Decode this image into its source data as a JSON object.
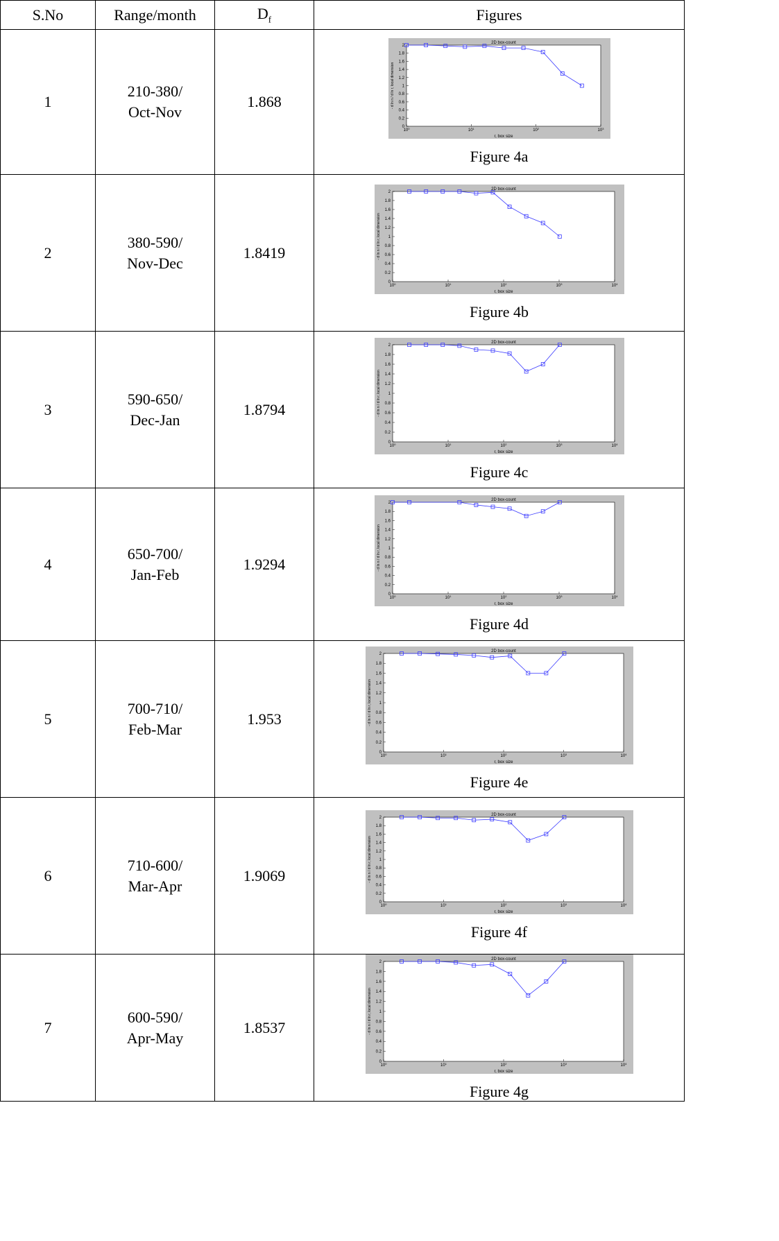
{
  "header": {
    "sno": "S.No",
    "range": "Range/month",
    "df_main": "D",
    "df_sub": "f",
    "figures": "Figures"
  },
  "rows": [
    {
      "sno": "1",
      "range_line1": "210-380/",
      "range_line2": "Oct-Nov",
      "df": "1.868",
      "caption": "Figure 4a"
    },
    {
      "sno": "2",
      "range_line1": "380-590/",
      "range_line2": "Nov-Dec",
      "df": "1.8419",
      "caption": "Figure 4b"
    },
    {
      "sno": "3",
      "range_line1": "590-650/",
      "range_line2": "Dec-Jan",
      "df": "1.8794",
      "caption": "Figure 4c"
    },
    {
      "sno": "4",
      "range_line1": "650-700/",
      "range_line2": "Jan-Feb",
      "df": "1.9294",
      "caption": "Figure 4d"
    },
    {
      "sno": "5",
      "range_line1": "700-710/",
      "range_line2": "Feb-Mar",
      "df": "1.953",
      "caption": "Figure 4e"
    },
    {
      "sno": "6",
      "range_line1": "710-600/",
      "range_line2": "Mar-Apr",
      "df": "1.9069",
      "caption": "Figure 4f"
    },
    {
      "sno": "7",
      "range_line1": "600-590/",
      "range_line2": "Apr-May",
      "df": "1.8537",
      "caption": "Figure 4g"
    }
  ],
  "chart_data": [
    {
      "type": "line",
      "title": "2D box-count",
      "xlabel": "r, box size",
      "ylabel": "- d ln n / d ln r, local dimension",
      "xscale": "log",
      "xlim": [
        1,
        1000
      ],
      "ylim": [
        0,
        2
      ],
      "yticks": [
        0,
        0.2,
        0.4,
        0.6,
        0.8,
        1,
        1.2,
        1.4,
        1.6,
        1.8,
        2
      ],
      "xtick_labels": [
        "10^0",
        "10^1",
        "10^2",
        "10^3"
      ],
      "x": [
        1,
        2,
        4,
        8,
        16,
        32,
        64,
        128,
        256,
        512
      ],
      "values": [
        2,
        2,
        1.98,
        1.96,
        1.98,
        1.93,
        1.93,
        1.83,
        1.3,
        1.0
      ]
    },
    {
      "type": "line",
      "title": "2D box-count",
      "xlabel": "r, box size",
      "ylabel": "- d ln n / d ln r, local dimension",
      "xscale": "log",
      "xlim": [
        1,
        10000
      ],
      "ylim": [
        0,
        2
      ],
      "yticks": [
        0,
        0.2,
        0.4,
        0.6,
        0.8,
        1,
        1.2,
        1.4,
        1.6,
        1.8,
        2
      ],
      "xtick_labels": [
        "10^0",
        "10^1",
        "10^2",
        "10^3",
        "10^4"
      ],
      "x": [
        2,
        4,
        8,
        16,
        32,
        64,
        128,
        256,
        512,
        1024
      ],
      "values": [
        2,
        2,
        2,
        2,
        1.96,
        1.98,
        1.66,
        1.45,
        1.3,
        1.0
      ]
    },
    {
      "type": "line",
      "title": "2D box-count",
      "xlabel": "r, box size",
      "ylabel": "- d ln n / d ln r, local dimension",
      "xscale": "log",
      "xlim": [
        1,
        10000
      ],
      "ylim": [
        0,
        2
      ],
      "yticks": [
        0,
        0.2,
        0.4,
        0.6,
        0.8,
        1,
        1.2,
        1.4,
        1.6,
        1.8,
        2
      ],
      "xtick_labels": [
        "10^0",
        "10^1",
        "10^2",
        "10^3",
        "10^4"
      ],
      "x": [
        2,
        4,
        8,
        16,
        32,
        64,
        128,
        256,
        512,
        1024
      ],
      "values": [
        2,
        2,
        2,
        1.98,
        1.9,
        1.88,
        1.82,
        1.45,
        1.6,
        2.0
      ]
    },
    {
      "type": "line",
      "title": "2D box-count",
      "xlabel": "r, box size",
      "ylabel": "- d ln n / d ln r, local dimension",
      "xscale": "log",
      "xlim": [
        1,
        10000
      ],
      "ylim": [
        0,
        2
      ],
      "yticks": [
        0,
        0.2,
        0.4,
        0.6,
        0.8,
        1,
        1.2,
        1.4,
        1.6,
        1.8,
        2
      ],
      "xtick_labels": [
        "10^0",
        "10^1",
        "10^2",
        "10^3",
        "10^4"
      ],
      "x": [
        1,
        2,
        16,
        32,
        64,
        128,
        256,
        512,
        1024
      ],
      "values": [
        2,
        2,
        2,
        1.94,
        1.9,
        1.86,
        1.7,
        1.8,
        2.0
      ]
    },
    {
      "type": "line",
      "title": "2D box-count",
      "xlabel": "r, box size",
      "ylabel": "- d ln n / d ln r, local dimension",
      "xscale": "log",
      "xlim": [
        1,
        10000
      ],
      "ylim": [
        0,
        2
      ],
      "yticks": [
        0,
        0.2,
        0.4,
        0.6,
        0.8,
        1,
        1.2,
        1.4,
        1.6,
        1.8,
        2
      ],
      "xtick_labels": [
        "10^0",
        "10^1",
        "10^2",
        "10^3",
        "10^4"
      ],
      "x": [
        2,
        4,
        8,
        16,
        32,
        64,
        128,
        256,
        512,
        1024
      ],
      "values": [
        2,
        2,
        1.99,
        1.98,
        1.96,
        1.92,
        1.95,
        1.6,
        1.6,
        2.0
      ]
    },
    {
      "type": "line",
      "title": "2D box-count",
      "xlabel": "r, box size",
      "ylabel": "- d ln n / d ln r, local dimension",
      "xscale": "log",
      "xlim": [
        1,
        10000
      ],
      "ylim": [
        0,
        2
      ],
      "yticks": [
        0,
        0.2,
        0.4,
        0.6,
        0.8,
        1,
        1.2,
        1.4,
        1.6,
        1.8,
        2
      ],
      "xtick_labels": [
        "10^0",
        "10^1",
        "10^2",
        "10^3",
        "10^4"
      ],
      "x": [
        2,
        4,
        8,
        16,
        32,
        64,
        128,
        256,
        512,
        1024
      ],
      "values": [
        2,
        2,
        1.98,
        1.98,
        1.93,
        1.95,
        1.88,
        1.45,
        1.6,
        2.0
      ]
    },
    {
      "type": "line",
      "title": "2D box-count",
      "xlabel": "r, box size",
      "ylabel": "- d ln n / d ln r, local dimension",
      "xscale": "log",
      "xlim": [
        1,
        10000
      ],
      "ylim": [
        0,
        2
      ],
      "yticks": [
        0,
        0.2,
        0.4,
        0.6,
        0.8,
        1,
        1.2,
        1.4,
        1.6,
        1.8,
        2
      ],
      "xtick_labels": [
        "10^0",
        "10^1",
        "10^2",
        "10^3",
        "10^4"
      ],
      "x": [
        2,
        4,
        8,
        16,
        32,
        64,
        128,
        256,
        512,
        1024
      ],
      "values": [
        2,
        2,
        2,
        1.98,
        1.92,
        1.94,
        1.75,
        1.32,
        1.6,
        2.0
      ]
    }
  ],
  "style": {
    "plot_line_color": "#3b3bff",
    "plot_bg": "#c0c0c0",
    "axes_bg": "#ffffff"
  }
}
